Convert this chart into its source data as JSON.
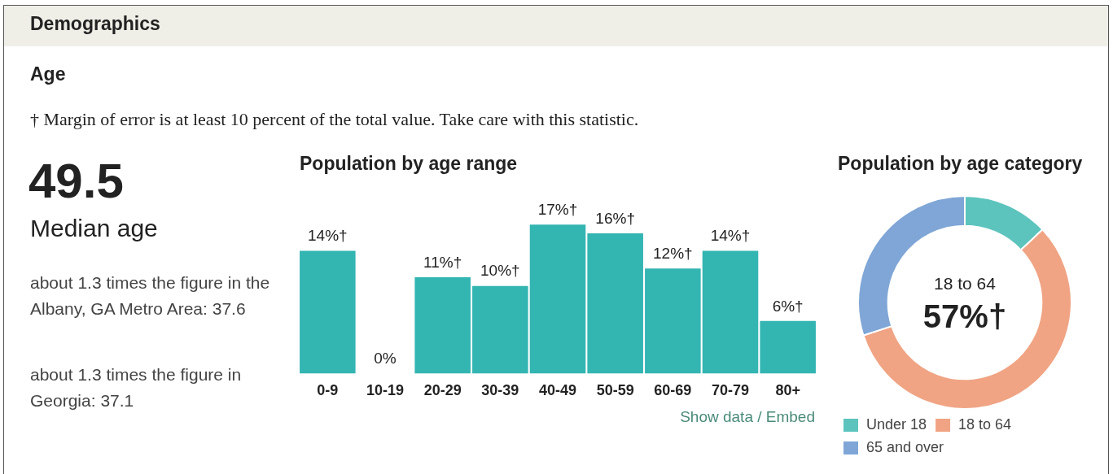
{
  "chart_data": [
    {
      "type": "other",
      "title": "Demographics",
      "subtitle": "Age",
      "annotations": [
        "† Margin of error is at least 10 percent of the total value. Take care with this statistic.",
        "49.5",
        "Median age",
        "about 1.3 times the figure in the Albany, GA Metro Area: 37.6",
        "about 1.3 times the figure in Georgia: 37.1"
      ]
    },
    {
      "type": "bar",
      "title": "Population by age range",
      "categories": [
        "0-9",
        "10-19",
        "20-29",
        "30-39",
        "40-49",
        "50-59",
        "60-69",
        "70-79",
        "80+"
      ],
      "values": [
        14,
        0,
        11,
        10,
        17,
        16,
        12,
        14,
        6
      ],
      "color": "#33b5b2",
      "value_labels": [
        "14%†",
        "0%",
        "11%†",
        "10%†",
        "17%†",
        "16%†",
        "12%†",
        "14%†",
        "6%†"
      ],
      "annotations": [
        "Show data / Embed"
      ],
      "grid": false,
      "legend": false
    },
    {
      "type": "donut",
      "title": "Population by age category",
      "categories": [
        "Under 18",
        "18 to 64",
        "65 and over"
      ],
      "values": [
        13,
        57,
        30
      ],
      "colors": [
        "#5cc4bd",
        "#f0a484",
        "#7fa6d6"
      ],
      "value_labels": [
        null,
        "57%†",
        null
      ],
      "legend": "bottom"
    }
  ]
}
